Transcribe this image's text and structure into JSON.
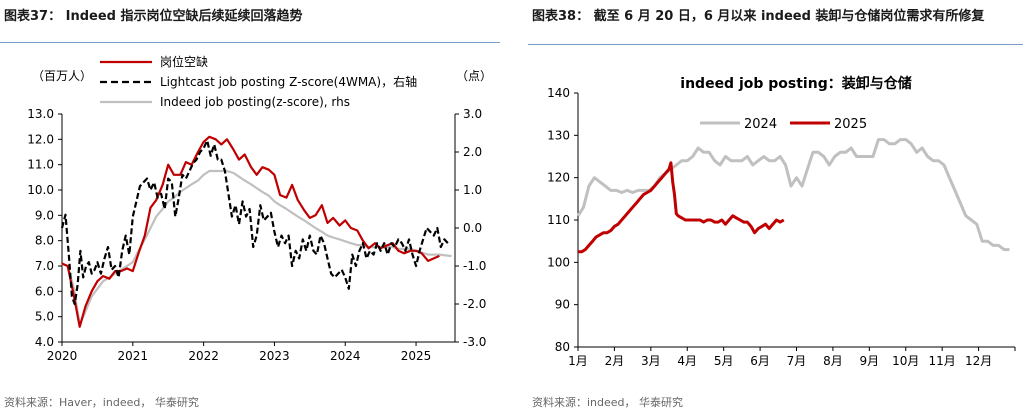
{
  "colors": {
    "red": "#c00000",
    "black": "#000000",
    "gray": "#c0c0c0",
    "rule": "#7a9cc6"
  },
  "left": {
    "figure_title": "图表37： Indeed 指示岗位空缺后续延续回落趋势",
    "source": "资料来源：Haver，indeed， 华泰研究",
    "left_unit": "（百万人）",
    "right_unit": "（点）",
    "chart_data": {
      "type": "line",
      "title": "",
      "xlabel": "",
      "ylabel": "",
      "x_ticks": [
        2020,
        2021,
        2022,
        2023,
        2024,
        2025
      ],
      "x_range": [
        2020.0,
        2025.55
      ],
      "ylim_left": [
        4.0,
        13.0
      ],
      "ylim_right": [
        -3.0,
        3.0
      ],
      "yticks_left": [
        "4.0",
        "5.0",
        "6.0",
        "7.0",
        "8.0",
        "9.0",
        "10.0",
        "11.0",
        "12.0",
        "13.0"
      ],
      "yticks_right": [
        "-3.0",
        "-2.0",
        "-1.0",
        "0.0",
        "1.0",
        "2.0",
        "3.0"
      ],
      "series": [
        {
          "name": "岗位空缺",
          "axis": "left",
          "color": "#c00000",
          "style": "solid",
          "x": [
            2020.0,
            2020.08,
            2020.17,
            2020.25,
            2020.33,
            2020.42,
            2020.5,
            2020.58,
            2020.67,
            2020.75,
            2020.83,
            2020.92,
            2021.0,
            2021.08,
            2021.17,
            2021.25,
            2021.33,
            2021.42,
            2021.5,
            2021.58,
            2021.67,
            2021.75,
            2021.83,
            2021.92,
            2022.0,
            2022.08,
            2022.17,
            2022.25,
            2022.33,
            2022.42,
            2022.5,
            2022.58,
            2022.67,
            2022.75,
            2022.83,
            2022.92,
            2023.0,
            2023.08,
            2023.17,
            2023.25,
            2023.33,
            2023.42,
            2023.5,
            2023.58,
            2023.67,
            2023.75,
            2023.83,
            2023.92,
            2024.0,
            2024.08,
            2024.17,
            2024.25,
            2024.33,
            2024.42,
            2024.5,
            2024.58,
            2024.67,
            2024.75,
            2024.83,
            2024.92,
            2025.0,
            2025.08,
            2025.17,
            2025.25,
            2025.33
          ],
          "values": [
            7.1,
            7.0,
            5.8,
            4.6,
            5.4,
            6.0,
            6.4,
            6.6,
            6.5,
            6.8,
            6.8,
            6.9,
            6.8,
            7.5,
            8.2,
            9.3,
            9.6,
            10.2,
            11.0,
            10.6,
            10.6,
            11.1,
            11.0,
            11.5,
            11.9,
            12.1,
            12.0,
            11.8,
            12.0,
            11.6,
            11.2,
            11.4,
            10.9,
            10.6,
            10.9,
            10.8,
            10.6,
            9.8,
            9.7,
            10.2,
            9.6,
            9.2,
            8.9,
            9.0,
            9.4,
            8.7,
            8.9,
            8.6,
            8.8,
            8.5,
            8.4,
            8.0,
            7.7,
            7.9,
            7.7,
            7.8,
            7.9,
            7.6,
            7.5,
            7.6,
            7.6,
            7.5,
            7.2,
            7.3,
            7.4
          ]
        },
        {
          "name": "Lightcast job posting Z-score(4WMA)，右轴",
          "axis": "right",
          "color": "#000000",
          "style": "dashed",
          "x": [
            2020.0,
            2020.05,
            2020.1,
            2020.14,
            2020.18,
            2020.22,
            2020.26,
            2020.3,
            2020.34,
            2020.38,
            2020.42,
            2020.46,
            2020.5,
            2020.55,
            2020.6,
            2020.65,
            2020.7,
            2020.75,
            2020.8,
            2020.85,
            2020.9,
            2020.95,
            2021.0,
            2021.05,
            2021.1,
            2021.15,
            2021.2,
            2021.25,
            2021.3,
            2021.35,
            2021.4,
            2021.45,
            2021.5,
            2021.55,
            2021.6,
            2021.65,
            2021.7,
            2021.75,
            2021.8,
            2021.85,
            2021.9,
            2021.95,
            2022.0,
            2022.05,
            2022.1,
            2022.15,
            2022.2,
            2022.25,
            2022.3,
            2022.35,
            2022.4,
            2022.45,
            2022.5,
            2022.55,
            2022.6,
            2022.65,
            2022.7,
            2022.75,
            2022.8,
            2022.85,
            2022.9,
            2022.95,
            2023.0,
            2023.05,
            2023.1,
            2023.15,
            2023.2,
            2023.25,
            2023.3,
            2023.35,
            2023.4,
            2023.45,
            2023.5,
            2023.55,
            2023.6,
            2023.65,
            2023.7,
            2023.75,
            2023.8,
            2023.85,
            2023.9,
            2023.95,
            2024.0,
            2024.05,
            2024.1,
            2024.15,
            2024.2,
            2024.25,
            2024.3,
            2024.35,
            2024.4,
            2024.45,
            2024.5,
            2024.55,
            2024.6,
            2024.65,
            2024.7,
            2024.75,
            2024.8,
            2024.85,
            2024.9,
            2024.95,
            2025.0,
            2025.05,
            2025.1,
            2025.15,
            2025.2,
            2025.25,
            2025.3,
            2025.35,
            2025.4,
            2025.45
          ],
          "values": [
            0.0,
            0.35,
            -0.8,
            -1.8,
            -2.0,
            -1.5,
            -0.6,
            -1.3,
            -1.0,
            -0.9,
            -1.2,
            -1.1,
            -0.9,
            -1.2,
            -0.8,
            -0.5,
            -1.1,
            -1.0,
            -1.3,
            -0.6,
            -0.2,
            -0.7,
            0.3,
            0.7,
            1.1,
            1.2,
            1.3,
            1.0,
            1.2,
            0.8,
            0.9,
            0.5,
            1.3,
            1.2,
            0.3,
            0.8,
            1.4,
            1.3,
            1.5,
            1.7,
            1.8,
            2.0,
            2.1,
            2.3,
            1.9,
            2.2,
            1.8,
            1.8,
            1.5,
            0.9,
            0.3,
            0.6,
            0.1,
            0.7,
            0.3,
            0.5,
            -0.5,
            -0.2,
            0.6,
            0.2,
            0.3,
            0.4,
            -0.1,
            -0.5,
            -0.2,
            -0.4,
            -0.2,
            -1.0,
            -0.6,
            -0.8,
            -0.3,
            -0.6,
            -0.2,
            -0.6,
            -0.7,
            -0.2,
            -0.4,
            -0.8,
            -1.2,
            -1.3,
            -1.2,
            -1.1,
            -1.3,
            -1.6,
            -0.7,
            -1.0,
            -0.6,
            -0.4,
            -0.8,
            -0.6,
            -0.7,
            -0.4,
            -0.6,
            -0.4,
            -0.7,
            -0.4,
            -0.5,
            -0.3,
            -0.4,
            -0.6,
            -0.3,
            -0.7,
            -1.0,
            -0.6,
            -0.3,
            0.0,
            -0.1,
            -0.2,
            0.0,
            -0.5,
            -0.3,
            -0.4
          ]
        },
        {
          "name": "Indeed job posting(z-score), rhs",
          "axis": "right",
          "color": "#c0c0c0",
          "style": "solid",
          "x": [
            2020.0,
            2020.08,
            2020.17,
            2020.25,
            2020.33,
            2020.42,
            2020.5,
            2020.58,
            2020.67,
            2020.75,
            2020.83,
            2020.92,
            2021.0,
            2021.08,
            2021.17,
            2021.25,
            2021.33,
            2021.42,
            2021.5,
            2021.58,
            2021.67,
            2021.75,
            2021.83,
            2021.92,
            2022.0,
            2022.08,
            2022.17,
            2022.25,
            2022.33,
            2022.42,
            2022.5,
            2022.58,
            2022.67,
            2022.75,
            2022.83,
            2022.92,
            2023.0,
            2023.08,
            2023.17,
            2023.25,
            2023.33,
            2023.42,
            2023.5,
            2023.58,
            2023.67,
            2023.75,
            2023.83,
            2023.92,
            2024.0,
            2024.08,
            2024.17,
            2024.25,
            2024.33,
            2024.42,
            2024.5,
            2024.58,
            2024.67,
            2024.75,
            2024.83,
            2024.92,
            2025.0,
            2025.08,
            2025.17,
            2025.25,
            2025.33,
            2025.42,
            2025.5
          ],
          "values": [
            -0.95,
            -1.0,
            -1.6,
            -2.55,
            -2.2,
            -1.8,
            -1.6,
            -1.4,
            -1.3,
            -1.2,
            -1.1,
            -1.0,
            -0.9,
            -0.6,
            -0.3,
            0.0,
            0.3,
            0.5,
            0.7,
            0.8,
            0.95,
            1.05,
            1.15,
            1.25,
            1.4,
            1.5,
            1.5,
            1.5,
            1.5,
            1.45,
            1.35,
            1.25,
            1.15,
            1.05,
            0.95,
            0.85,
            0.7,
            0.6,
            0.5,
            0.4,
            0.3,
            0.2,
            0.1,
            0.0,
            -0.1,
            -0.2,
            -0.25,
            -0.3,
            -0.35,
            -0.4,
            -0.45,
            -0.45,
            -0.5,
            -0.5,
            -0.5,
            -0.5,
            -0.5,
            -0.55,
            -0.55,
            -0.55,
            -0.6,
            -0.65,
            -0.7,
            -0.7,
            -0.7,
            -0.72,
            -0.74
          ]
        }
      ]
    }
  },
  "right": {
    "figure_title": "图表38： 截至 6 月 20 日，6 月以来 indeed 装卸与仓储岗位需求有所修复",
    "source": "资料来源：indeed， 华泰研究",
    "chart_data": {
      "type": "line",
      "title": "indeed job posting：装卸与仓储",
      "xlabel": "",
      "ylabel": "",
      "x_ticks": [
        "1月",
        "2月",
        "3月",
        "4月",
        "5月",
        "6月",
        "7月",
        "8月",
        "9月",
        "10月",
        "11月",
        "12月"
      ],
      "x_range": [
        1,
        13
      ],
      "ylim": [
        80,
        140
      ],
      "yticks": [
        80,
        90,
        100,
        110,
        120,
        130,
        140
      ],
      "series": [
        {
          "name": "2024",
          "color": "#c0c0c0",
          "x": [
            1.0,
            1.15,
            1.3,
            1.45,
            1.6,
            1.75,
            1.9,
            2.05,
            2.2,
            2.35,
            2.5,
            2.65,
            2.8,
            2.95,
            3.1,
            3.25,
            3.4,
            3.55,
            3.7,
            3.85,
            4.0,
            4.15,
            4.3,
            4.45,
            4.6,
            4.75,
            4.9,
            5.05,
            5.2,
            5.35,
            5.5,
            5.65,
            5.8,
            5.95,
            6.1,
            6.25,
            6.4,
            6.55,
            6.7,
            6.85,
            7.0,
            7.15,
            7.3,
            7.45,
            7.6,
            7.75,
            7.9,
            8.05,
            8.2,
            8.35,
            8.5,
            8.65,
            8.8,
            8.95,
            9.1,
            9.25,
            9.4,
            9.55,
            9.7,
            9.85,
            10.0,
            10.15,
            10.3,
            10.45,
            10.6,
            10.75,
            10.9,
            11.05,
            11.2,
            11.35,
            11.5,
            11.65,
            11.8,
            11.95,
            12.1,
            12.25,
            12.4,
            12.55,
            12.7,
            12.85
          ],
          "values": [
            111,
            113,
            118,
            120,
            119,
            118,
            117,
            117,
            116.5,
            117,
            116.5,
            117,
            117,
            117,
            118,
            120,
            121,
            122,
            123,
            124,
            124,
            125,
            127,
            126,
            126,
            124,
            123,
            125,
            124,
            124,
            124,
            125,
            123,
            124,
            125,
            124,
            124,
            125,
            123,
            118,
            120,
            118,
            122,
            126,
            126,
            125,
            123,
            125,
            126,
            126,
            127,
            125,
            125,
            125,
            125,
            129,
            129,
            128,
            128,
            129,
            129,
            128,
            126,
            127,
            125,
            124,
            124,
            123,
            120,
            117,
            114,
            111,
            110,
            109,
            105,
            105,
            104,
            104,
            103,
            103
          ]
        },
        {
          "name": "2025",
          "color": "#c00000",
          "x": [
            1.0,
            1.1,
            1.2,
            1.3,
            1.4,
            1.5,
            1.6,
            1.7,
            1.8,
            1.9,
            2.0,
            2.1,
            2.2,
            2.3,
            2.4,
            2.5,
            2.6,
            2.7,
            2.8,
            2.9,
            3.0,
            3.1,
            3.2,
            3.3,
            3.4,
            3.5,
            3.55,
            3.6,
            3.65,
            3.7,
            3.75,
            3.85,
            3.95,
            4.05,
            4.15,
            4.25,
            4.35,
            4.45,
            4.55,
            4.65,
            4.75,
            4.85,
            4.95,
            5.05,
            5.15,
            5.25,
            5.35,
            5.45,
            5.55,
            5.65,
            5.75,
            5.85,
            5.95,
            6.05,
            6.15,
            6.25,
            6.35,
            6.45,
            6.55,
            6.65
          ],
          "values": [
            102.5,
            102.5,
            103,
            104,
            105,
            106,
            106.5,
            107,
            107,
            107.5,
            108.5,
            109,
            110,
            111,
            112,
            113,
            114,
            115,
            116,
            116.5,
            117,
            118,
            119,
            120,
            121,
            122,
            123.5,
            119,
            116,
            111.5,
            111,
            110.5,
            110,
            110,
            110,
            110,
            110,
            109.5,
            110,
            110,
            109.5,
            109.5,
            110,
            109,
            110,
            111,
            110.5,
            110,
            109.5,
            109.5,
            108.5,
            107,
            108,
            108.5,
            109,
            108,
            109,
            110,
            109.5,
            110
          ]
        }
      ]
    }
  }
}
